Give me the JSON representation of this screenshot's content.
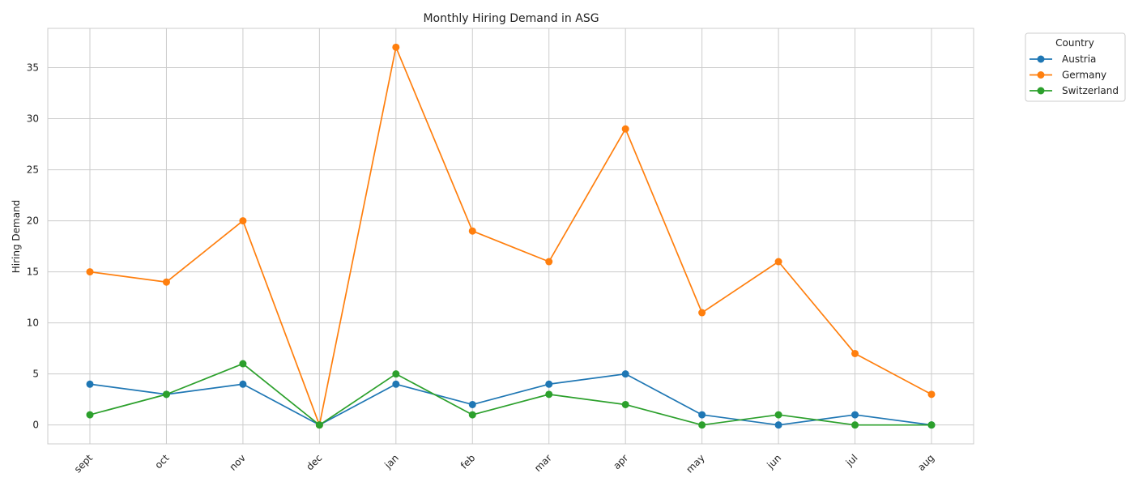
{
  "chart_data": {
    "type": "line",
    "title": "Monthly Hiring Demand in ASG",
    "xlabel": "",
    "ylabel": "Hiring Demand",
    "categories": [
      "sept",
      "oct",
      "nov",
      "dec",
      "jan",
      "feb",
      "mar",
      "apr",
      "may",
      "jun",
      "jul",
      "aug"
    ],
    "yticks": [
      0,
      5,
      10,
      15,
      20,
      25,
      30,
      35
    ],
    "ylim": [
      -1.85,
      38.85
    ],
    "grid": true,
    "legend": {
      "title": "Country",
      "placement": "outside-top-right"
    },
    "series": [
      {
        "name": "Austria",
        "color": "#1f77b4",
        "values": [
          4,
          3,
          4,
          0,
          4,
          2,
          4,
          5,
          1,
          0,
          1,
          0
        ]
      },
      {
        "name": "Germany",
        "color": "#ff7f0e",
        "values": [
          15,
          14,
          20,
          0,
          37,
          19,
          16,
          29,
          11,
          16,
          7,
          3
        ]
      },
      {
        "name": "Switzerland",
        "color": "#2ca02c",
        "values": [
          1,
          3,
          6,
          0,
          5,
          1,
          3,
          2,
          0,
          1,
          0,
          0
        ]
      }
    ]
  }
}
